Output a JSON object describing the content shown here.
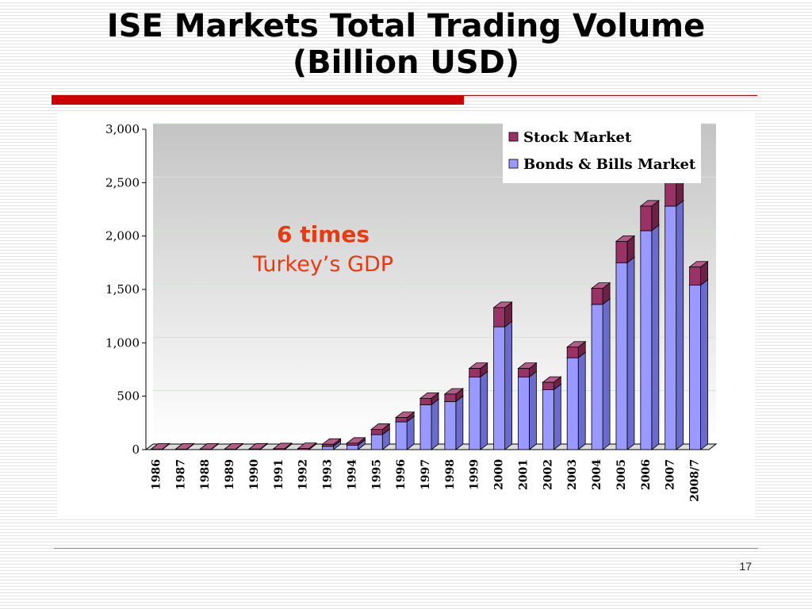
{
  "slide": {
    "title_line1": "ISE Markets Total Trading Volume",
    "title_line2": "(Billion USD)",
    "page_number": "17"
  },
  "annotation": {
    "line1": "6 times",
    "line2": "Turkey’s GDP"
  },
  "colors": {
    "stock": "#993366",
    "bonds": "#9999ff",
    "accent_red": "#cc0000",
    "annotation": "#e83a12"
  },
  "chart_data": {
    "type": "bar",
    "stacked": true,
    "three_d": true,
    "categories": [
      "1986",
      "1987",
      "1988",
      "1989",
      "1990",
      "1991",
      "1992",
      "1993",
      "1994",
      "1995",
      "1996",
      "1997",
      "1998",
      "1999",
      "2000",
      "2001",
      "2002",
      "2003",
      "2004",
      "2005",
      "2006",
      "2007",
      "2008/7"
    ],
    "series": [
      {
        "name": "Bonds & Bills Market",
        "values": [
          0,
          0,
          0,
          0,
          0,
          0,
          0,
          30,
          40,
          140,
          260,
          420,
          450,
          680,
          1150,
          680,
          560,
          860,
          1360,
          1750,
          2050,
          2280,
          1540
        ]
      },
      {
        "name": "Stock Market",
        "values": [
          0,
          0,
          1,
          1,
          5,
          8,
          10,
          20,
          20,
          50,
          40,
          60,
          70,
          80,
          180,
          80,
          70,
          100,
          150,
          200,
          230,
          260,
          170
        ]
      }
    ],
    "ylim": [
      0,
      3000
    ],
    "yticks": [
      0,
      500,
      1000,
      1500,
      2000,
      2500,
      3000
    ],
    "ytick_labels": [
      "0",
      "500",
      "1,000",
      "1,500",
      "2,000",
      "2,500",
      "3,000"
    ],
    "legend_position": "top-right",
    "grid": true
  }
}
